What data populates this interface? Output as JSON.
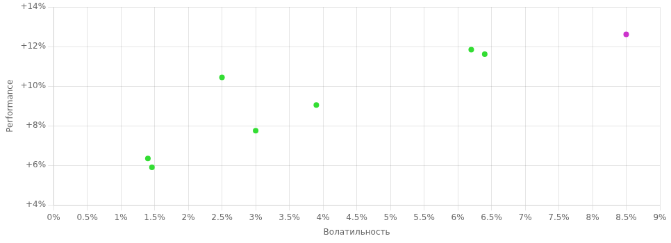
{
  "chart_data": {
    "type": "scatter",
    "xlabel": "Волатильность",
    "ylabel": "Performance",
    "series": [
      {
        "color": "#33dd33",
        "x": [
          1.4,
          1.46,
          2.5,
          3.0,
          3.9,
          6.2,
          6.4
        ],
        "values": [
          6.35,
          5.9,
          10.45,
          7.75,
          9.05,
          11.85,
          11.62
        ]
      },
      {
        "color": "#cc33cc",
        "x": [
          8.5
        ],
        "values": [
          12.62
        ]
      }
    ],
    "xlim": [
      0.0,
      9.0
    ],
    "ylim": [
      4.0,
      14.0
    ],
    "xticks": [
      {
        "value": 0.0,
        "label": "0%"
      },
      {
        "value": 0.5,
        "label": "0.5%"
      },
      {
        "value": 1.0,
        "label": "1%"
      },
      {
        "value": 1.5,
        "label": "1.5%"
      },
      {
        "value": 2.0,
        "label": "2%"
      },
      {
        "value": 2.5,
        "label": "2.5%"
      },
      {
        "value": 3.0,
        "label": "3%"
      },
      {
        "value": 3.5,
        "label": "3.5%"
      },
      {
        "value": 4.0,
        "label": "4%"
      },
      {
        "value": 4.5,
        "label": "4.5%"
      },
      {
        "value": 5.0,
        "label": "5%"
      },
      {
        "value": 5.5,
        "label": "5.5%"
      },
      {
        "value": 6.0,
        "label": "6%"
      },
      {
        "value": 6.5,
        "label": "6.5%"
      },
      {
        "value": 7.0,
        "label": "7%"
      },
      {
        "value": 7.5,
        "label": "7.5%"
      },
      {
        "value": 8.0,
        "label": "8%"
      },
      {
        "value": 8.5,
        "label": "8.5%"
      },
      {
        "value": 9.0,
        "label": "9%"
      }
    ],
    "yticks": [
      {
        "value": 4,
        "label": "+4%"
      },
      {
        "value": 6,
        "label": "+6%"
      },
      {
        "value": 8,
        "label": "+8%"
      },
      {
        "value": 10,
        "label": "+10%"
      },
      {
        "value": 12,
        "label": "+12%"
      },
      {
        "value": 14,
        "label": "+14%"
      }
    ],
    "grid": true
  }
}
